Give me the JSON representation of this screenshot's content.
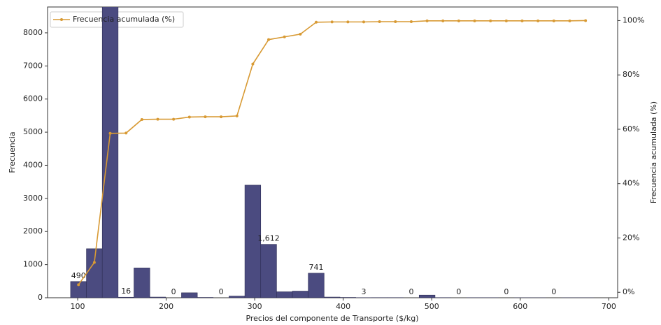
{
  "chart_data": {
    "type": "histogram",
    "xlabel": "Precios del componente de Transporte ($/kg)",
    "ylabel": "Frecuencia",
    "y2label": "Frecuencia acumulada (%)",
    "bins": [
      92,
      109.9,
      127.8,
      145.7,
      163.6,
      181.5,
      199.4,
      217.3,
      235.2,
      253.1,
      271,
      288.9,
      306.8,
      324.7,
      342.6,
      360.5,
      378.4,
      396.3,
      414.2,
      432.1,
      450,
      467.9,
      485.8,
      503.7,
      521.6,
      539.5,
      557.4,
      575.3,
      593.2,
      611.1,
      629,
      646.9,
      664.8,
      682.7
    ],
    "counts": [
      490,
      1480,
      8800,
      16,
      900,
      20,
      0,
      150,
      10,
      0,
      50,
      3400,
      1612,
      180,
      200,
      741,
      20,
      10,
      3,
      5,
      5,
      0,
      80,
      5,
      0,
      2,
      2,
      0,
      1,
      1,
      0,
      1,
      1
    ],
    "value_labels": [
      "490",
      null,
      null,
      "16",
      null,
      null,
      "0",
      null,
      null,
      "0",
      null,
      null,
      "1,612",
      null,
      null,
      "741",
      null,
      null,
      "3",
      null,
      null,
      "0",
      null,
      null,
      "0",
      null,
      null,
      "0",
      null,
      null,
      "0",
      null,
      null
    ],
    "color": "#4b4b80",
    "edgecolor": "#2e2e55",
    "series": [
      {
        "name": "Frecuencia acumulada (%)",
        "color": "#d89a34",
        "axis": "y2",
        "values": [
          2.8,
          11,
          58.5,
          58.6,
          63.6,
          63.7,
          63.7,
          64.5,
          64.6,
          64.6,
          64.9,
          84,
          93,
          94,
          95,
          99.4,
          99.5,
          99.5,
          99.5,
          99.6,
          99.6,
          99.6,
          99.9,
          99.9,
          99.9,
          99.9,
          99.9,
          99.9,
          99.9,
          99.9,
          99.9,
          99.9,
          100
        ]
      }
    ],
    "legend": "upper left",
    "xlim": [
      66,
      710
    ],
    "xticks": [
      100,
      200,
      300,
      400,
      500,
      600,
      700
    ],
    "ylim": [
      0,
      8780
    ],
    "yticks": [
      0,
      1000,
      2000,
      3000,
      4000,
      5000,
      6000,
      7000,
      8000
    ],
    "y2lim": [
      -2,
      105
    ],
    "y2ticks": [
      {
        "value": 0,
        "label": "0%"
      },
      {
        "value": 20,
        "label": "20%"
      },
      {
        "value": 40,
        "label": "40%"
      },
      {
        "value": 60,
        "label": "60%"
      },
      {
        "value": 80,
        "label": "80%"
      },
      {
        "value": 100,
        "label": "100%"
      }
    ]
  }
}
